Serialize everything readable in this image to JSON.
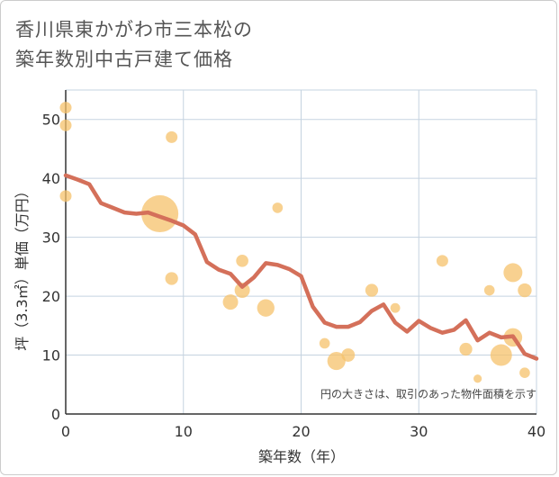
{
  "title_lines": [
    "香川県東かがわ市三本松の",
    "築年数別中古戸建て価格"
  ],
  "note": "円の大きさは、取引のあった物件面積を示す",
  "chart_data": {
    "type": "scatter",
    "xlabel": "築年数（年）",
    "ylabel": "坪（3.3㎡）単価（万円）",
    "xlim": [
      0,
      40
    ],
    "ylim": [
      0,
      55
    ],
    "xticks": [
      0,
      10,
      20,
      30,
      40
    ],
    "yticks": [
      0,
      10,
      20,
      30,
      40,
      50
    ],
    "grid": true,
    "colors": {
      "bubble": "#f5c26b",
      "line": "#d4705a",
      "grid": "#c5d3e0"
    },
    "bubbles": [
      {
        "x": 0,
        "y": 52,
        "size": 1
      },
      {
        "x": 0,
        "y": 49,
        "size": 1
      },
      {
        "x": 0,
        "y": 37,
        "size": 1
      },
      {
        "x": 8,
        "y": 34,
        "size": 10
      },
      {
        "x": 9,
        "y": 47,
        "size": 1
      },
      {
        "x": 9,
        "y": 23,
        "size": 1.2
      },
      {
        "x": 14,
        "y": 19,
        "size": 1.7
      },
      {
        "x": 15,
        "y": 26,
        "size": 1.1
      },
      {
        "x": 15,
        "y": 21,
        "size": 1.7
      },
      {
        "x": 17,
        "y": 18,
        "size": 2.2
      },
      {
        "x": 18,
        "y": 35,
        "size": 0.8
      },
      {
        "x": 22,
        "y": 12,
        "size": 0.8
      },
      {
        "x": 23,
        "y": 9,
        "size": 2.4
      },
      {
        "x": 24,
        "y": 10,
        "size": 1.3
      },
      {
        "x": 26,
        "y": 21,
        "size": 1.2
      },
      {
        "x": 28,
        "y": 18,
        "size": 0.7
      },
      {
        "x": 32,
        "y": 26,
        "size": 1
      },
      {
        "x": 34,
        "y": 11,
        "size": 1.2
      },
      {
        "x": 35,
        "y": 6,
        "size": 0.5
      },
      {
        "x": 36,
        "y": 21,
        "size": 0.8
      },
      {
        "x": 37,
        "y": 10,
        "size": 3.4
      },
      {
        "x": 38,
        "y": 13,
        "size": 2.5
      },
      {
        "x": 38,
        "y": 24,
        "size": 2.6
      },
      {
        "x": 39,
        "y": 21,
        "size": 1.4
      },
      {
        "x": 39,
        "y": 7,
        "size": 0.8
      }
    ],
    "trend": {
      "x": [
        0,
        1,
        2,
        3,
        4,
        5,
        6,
        7,
        8,
        9,
        10,
        11,
        12,
        13,
        14,
        15,
        16,
        17,
        18,
        19,
        20,
        21,
        22,
        23,
        24,
        25,
        26,
        27,
        28,
        29,
        30,
        31,
        32,
        33,
        34,
        35,
        36,
        37,
        38,
        39,
        40
      ],
      "y": [
        40.5,
        39.8,
        39,
        35.8,
        35,
        34.2,
        34,
        34.2,
        33.5,
        32.8,
        32,
        30.5,
        25.8,
        24.5,
        23.8,
        21.6,
        23.2,
        25.6,
        25.3,
        24.6,
        23.4,
        18.2,
        15.5,
        14.8,
        14.8,
        15.6,
        17.5,
        18.6,
        15.5,
        14,
        15.8,
        14.6,
        13.8,
        14.3,
        15.9,
        12.5,
        13.8,
        13,
        13.2,
        10.2,
        9.4
      ]
    }
  }
}
